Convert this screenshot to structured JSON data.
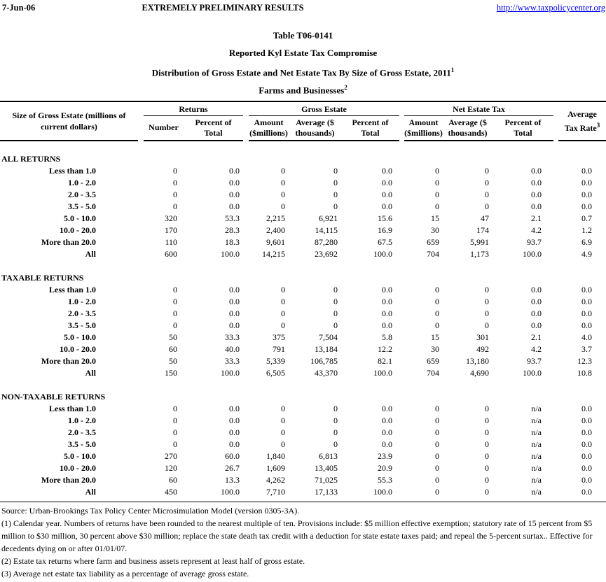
{
  "page_header": {
    "date": "7-Jun-06",
    "status": "EXTREMELY PRELIMINARY RESULTS",
    "link": "http://www.taxpolicycenter.org"
  },
  "title": {
    "line1": "Table T06-0141",
    "line2": "Reported Kyl Estate Tax Compromise",
    "line3": "Distribution of Gross Estate and Net Estate Tax By Size of Gross Estate, 2011",
    "line3_sup": "1",
    "line4": "Farms and Businesses",
    "line4_sup": "2"
  },
  "table": {
    "label_header": {
      "line1": "Size of Gross Estate (millions of",
      "line2": "current dollars)"
    },
    "groups": [
      {
        "label": "Returns"
      },
      {
        "label": "Gross Estate"
      },
      {
        "label": "Net Estate Tax"
      }
    ],
    "sub_headers": [
      {
        "line1": "Number",
        "line2": ""
      },
      {
        "line1": "Percent of",
        "line2": "Total"
      },
      {
        "line1": "Amount",
        "line2": "($millions)"
      },
      {
        "line1": "Average ($",
        "line2": "thousands)"
      },
      {
        "line1": "Percent of",
        "line2": "Total"
      },
      {
        "line1": "Amount",
        "line2": "($millions)"
      },
      {
        "line1": "Average ($",
        "line2": "thousands)"
      },
      {
        "line1": "Percent of",
        "line2": "Total"
      }
    ],
    "avg_header": {
      "line1": "Average",
      "line2": "Tax Rate",
      "sup": "3"
    },
    "sections": [
      {
        "name": "ALL RETURNS",
        "rows": [
          {
            "label": "Less than 1.0",
            "values": [
              "0",
              "0.0",
              "0",
              "0",
              "0.0",
              "0",
              "0",
              "0.0",
              "0.0"
            ]
          },
          {
            "label": "1.0 - 2.0",
            "values": [
              "0",
              "0.0",
              "0",
              "0",
              "0.0",
              "0",
              "0",
              "0.0",
              "0.0"
            ]
          },
          {
            "label": "2.0 - 3.5",
            "values": [
              "0",
              "0.0",
              "0",
              "0",
              "0.0",
              "0",
              "0",
              "0.0",
              "0.0"
            ]
          },
          {
            "label": "3.5 - 5.0",
            "values": [
              "0",
              "0.0",
              "0",
              "0",
              "0.0",
              "0",
              "0",
              "0.0",
              "0.0"
            ]
          },
          {
            "label": "5.0 - 10.0",
            "values": [
              "320",
              "53.3",
              "2,215",
              "6,921",
              "15.6",
              "15",
              "47",
              "2.1",
              "0.7"
            ]
          },
          {
            "label": "10.0 - 20.0",
            "values": [
              "170",
              "28.3",
              "2,400",
              "14,115",
              "16.9",
              "30",
              "174",
              "4.2",
              "1.2"
            ]
          },
          {
            "label": "More than 20.0",
            "values": [
              "110",
              "18.3",
              "9,601",
              "87,280",
              "67.5",
              "659",
              "5,991",
              "93.7",
              "6.9"
            ]
          },
          {
            "label": "All",
            "values": [
              "600",
              "100.0",
              "14,215",
              "23,692",
              "100.0",
              "704",
              "1,173",
              "100.0",
              "4.9"
            ]
          }
        ]
      },
      {
        "name": "TAXABLE RETURNS",
        "rows": [
          {
            "label": "Less than 1.0",
            "values": [
              "0",
              "0.0",
              "0",
              "0",
              "0.0",
              "0",
              "0",
              "0.0",
              "0.0"
            ]
          },
          {
            "label": "1.0 - 2.0",
            "values": [
              "0",
              "0.0",
              "0",
              "0",
              "0.0",
              "0",
              "0",
              "0.0",
              "0.0"
            ]
          },
          {
            "label": "2.0 - 3.5",
            "values": [
              "0",
              "0.0",
              "0",
              "0",
              "0.0",
              "0",
              "0",
              "0.0",
              "0.0"
            ]
          },
          {
            "label": "3.5 - 5.0",
            "values": [
              "0",
              "0.0",
              "0",
              "0",
              "0.0",
              "0",
              "0",
              "0.0",
              "0.0"
            ]
          },
          {
            "label": "5.0 - 10.0",
            "values": [
              "50",
              "33.3",
              "375",
              "7,504",
              "5.8",
              "15",
              "301",
              "2.1",
              "4.0"
            ]
          },
          {
            "label": "10.0 - 20.0",
            "values": [
              "60",
              "40.0",
              "791",
              "13,184",
              "12.2",
              "30",
              "492",
              "4.2",
              "3.7"
            ]
          },
          {
            "label": "More than 20.0",
            "values": [
              "50",
              "33.3",
              "5,339",
              "106,785",
              "82.1",
              "659",
              "13,180",
              "93.7",
              "12.3"
            ]
          },
          {
            "label": "All",
            "values": [
              "150",
              "100.0",
              "6,505",
              "43,370",
              "100.0",
              "704",
              "4,690",
              "100.0",
              "10.8"
            ]
          }
        ]
      },
      {
        "name": "NON-TAXABLE RETURNS",
        "rows": [
          {
            "label": "Less than 1.0",
            "values": [
              "0",
              "0.0",
              "0",
              "0",
              "0.0",
              "0",
              "0",
              "n/a",
              "0.0"
            ]
          },
          {
            "label": "1.0 - 2.0",
            "values": [
              "0",
              "0.0",
              "0",
              "0",
              "0.0",
              "0",
              "0",
              "n/a",
              "0.0"
            ]
          },
          {
            "label": "2.0 - 3.5",
            "values": [
              "0",
              "0.0",
              "0",
              "0",
              "0.0",
              "0",
              "0",
              "n/a",
              "0.0"
            ]
          },
          {
            "label": "3.5 - 5.0",
            "values": [
              "0",
              "0.0",
              "0",
              "0",
              "0.0",
              "0",
              "0",
              "n/a",
              "0.0"
            ]
          },
          {
            "label": "5.0 - 10.0",
            "values": [
              "270",
              "60.0",
              "1,840",
              "6,813",
              "23.9",
              "0",
              "0",
              "n/a",
              "0.0"
            ]
          },
          {
            "label": "10.0 - 20.0",
            "values": [
              "120",
              "26.7",
              "1,609",
              "13,405",
              "20.9",
              "0",
              "0",
              "n/a",
              "0.0"
            ]
          },
          {
            "label": "More than 20.0",
            "values": [
              "60",
              "13.3",
              "4,262",
              "71,025",
              "55.3",
              "0",
              "0",
              "n/a",
              "0.0"
            ]
          },
          {
            "label": "All",
            "values": [
              "450",
              "100.0",
              "7,710",
              "17,133",
              "100.0",
              "0",
              "0",
              "n/a",
              "0.0"
            ]
          }
        ]
      }
    ]
  },
  "footnotes": {
    "source": "Source: Urban-Brookings Tax Policy Center Microsimulation Model (version 0305-3A).",
    "note1": "(1) Calendar year. Numbers of returns have been rounded to the nearest multiple of ten. Provisions include: $5 million effective exemption; statutory rate of 15 percent from $5 million to $30 million, 30 percent above $30 million; replace the state death tax credit with a deduction for state estate taxes paid; and repeal the 5-percent surtax.. Effective for decedents dying on or after 01/01/07.",
    "note2": "(2) Estate tax returns where farm and business assets represent at least half of gross estate.",
    "note3": "(3) Average net estate tax liability as a percentage of average gross estate."
  }
}
